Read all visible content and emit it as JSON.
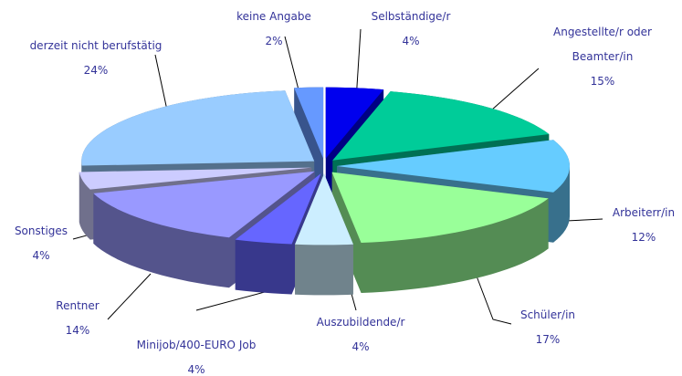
{
  "chart_data": {
    "type": "pie",
    "categories": [
      "Selbständige/r",
      "Angestellte/r oder Beamter/in",
      "Arbeiterr/in",
      "Schüler/in",
      "Auszubildende/r",
      "Minijob/400-EURO Job",
      "Rentner",
      "Sonstiges",
      "derzeit nicht berufstätig",
      "keine Angabe"
    ],
    "values": [
      4,
      15,
      12,
      17,
      4,
      4,
      14,
      4,
      24,
      2
    ],
    "value_labels": [
      "4%",
      "15%",
      "12%",
      "17%",
      "4%",
      "4%",
      "14%",
      "4%",
      "24%",
      "2%"
    ],
    "colors": [
      "#0000ee",
      "#00cc99",
      "#66ccff",
      "#99ff99",
      "#cceeff",
      "#6666ff",
      "#9999ff",
      "#ccccff",
      "#99ccff",
      "#6699ff"
    ]
  }
}
